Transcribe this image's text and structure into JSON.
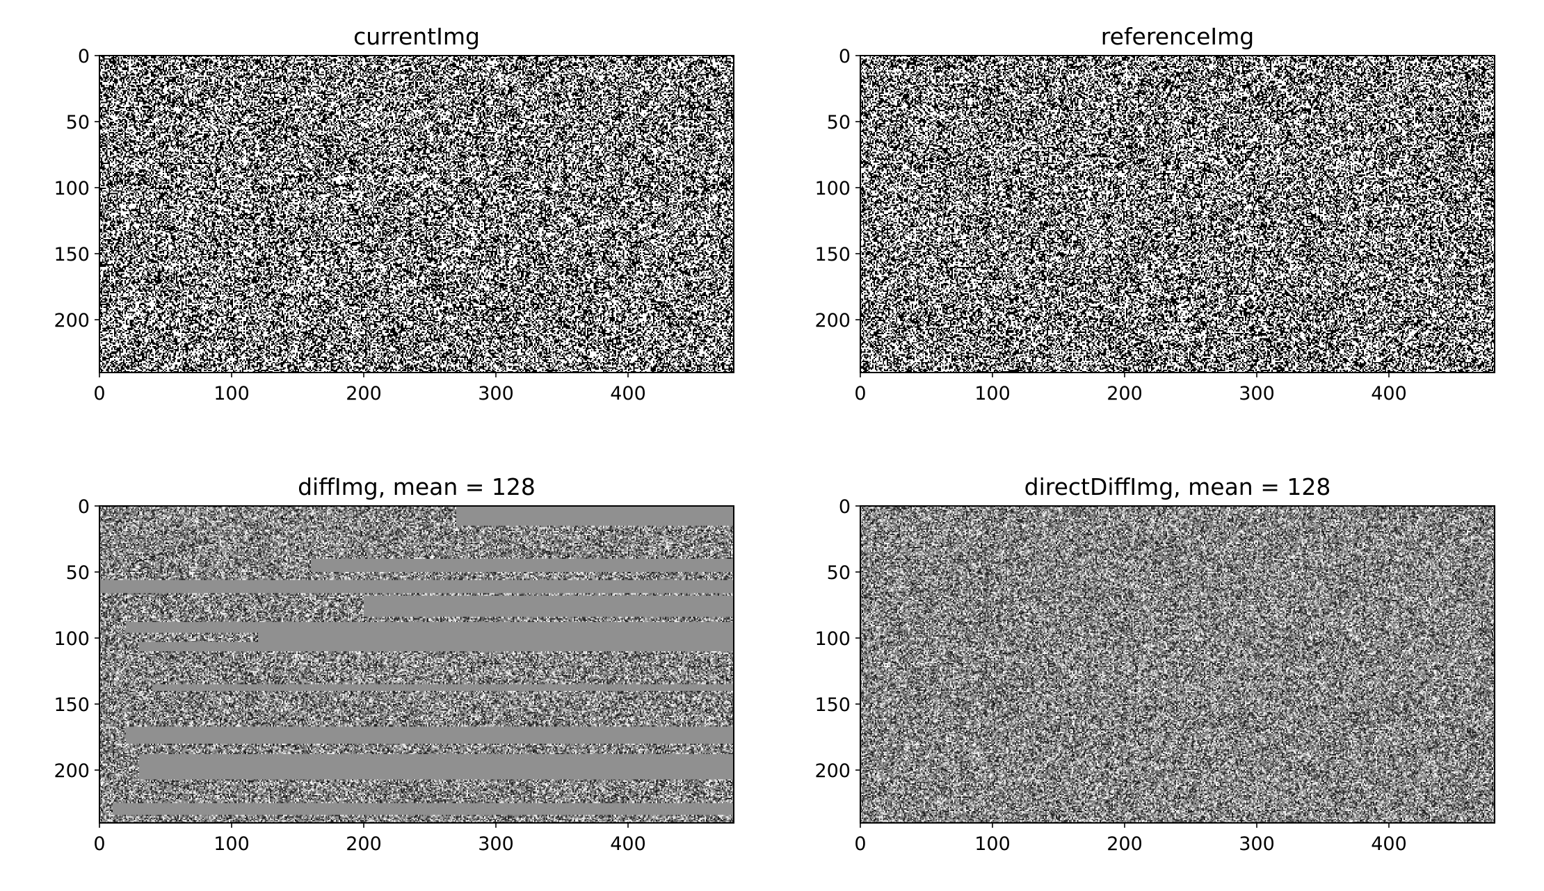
{
  "chart_data": [
    {
      "type": "heatmap",
      "title": "currentImg",
      "cmap": "gray",
      "pattern": "binary-noise",
      "image_shape": [
        240,
        480
      ],
      "xlim": [
        0,
        480
      ],
      "ylim": [
        240,
        0
      ],
      "xticks": [
        0,
        100,
        200,
        300,
        400
      ],
      "yticks": [
        0,
        50,
        100,
        150,
        200
      ]
    },
    {
      "type": "heatmap",
      "title": "referenceImg",
      "cmap": "gray",
      "pattern": "binary-noise",
      "image_shape": [
        240,
        480
      ],
      "xlim": [
        0,
        480
      ],
      "ylim": [
        240,
        0
      ],
      "xticks": [
        0,
        100,
        200,
        300,
        400
      ],
      "yticks": [
        0,
        50,
        100,
        150,
        200
      ]
    },
    {
      "type": "heatmap",
      "title": "diffImg, mean = 128",
      "cmap": "gray",
      "pattern": "noise-with-uniform-bands",
      "uniform_value": 128,
      "uniform_regions": [
        {
          "y": [
            0,
            15
          ],
          "x": [
            270,
            480
          ]
        },
        {
          "y": [
            40,
            50
          ],
          "x": [
            160,
            480
          ]
        },
        {
          "y": [
            56,
            66
          ],
          "x": [
            0,
            480
          ]
        },
        {
          "y": [
            68,
            84
          ],
          "x": [
            200,
            480
          ]
        },
        {
          "y": [
            88,
            96
          ],
          "x": [
            20,
            480
          ]
        },
        {
          "y": [
            96,
            110
          ],
          "x": [
            120,
            480
          ]
        },
        {
          "y": [
            103,
            110
          ],
          "x": [
            30,
            480
          ]
        },
        {
          "y": [
            135,
            140
          ],
          "x": [
            40,
            480
          ]
        },
        {
          "y": [
            167,
            180
          ],
          "x": [
            20,
            480
          ]
        },
        {
          "y": [
            188,
            207
          ],
          "x": [
            30,
            480
          ]
        },
        {
          "y": [
            225,
            234
          ],
          "x": [
            10,
            480
          ]
        }
      ],
      "image_shape": [
        240,
        480
      ],
      "xlim": [
        0,
        480
      ],
      "ylim": [
        240,
        0
      ],
      "xticks": [
        0,
        100,
        200,
        300,
        400
      ],
      "yticks": [
        0,
        50,
        100,
        150,
        200
      ]
    },
    {
      "type": "heatmap",
      "title": "directDiffImg, mean = 128",
      "cmap": "gray",
      "pattern": "gray-noise",
      "image_shape": [
        240,
        480
      ],
      "xlim": [
        0,
        480
      ],
      "ylim": [
        240,
        0
      ],
      "xticks": [
        0,
        100,
        200,
        300,
        400
      ],
      "yticks": [
        0,
        50,
        100,
        150,
        200
      ]
    }
  ]
}
